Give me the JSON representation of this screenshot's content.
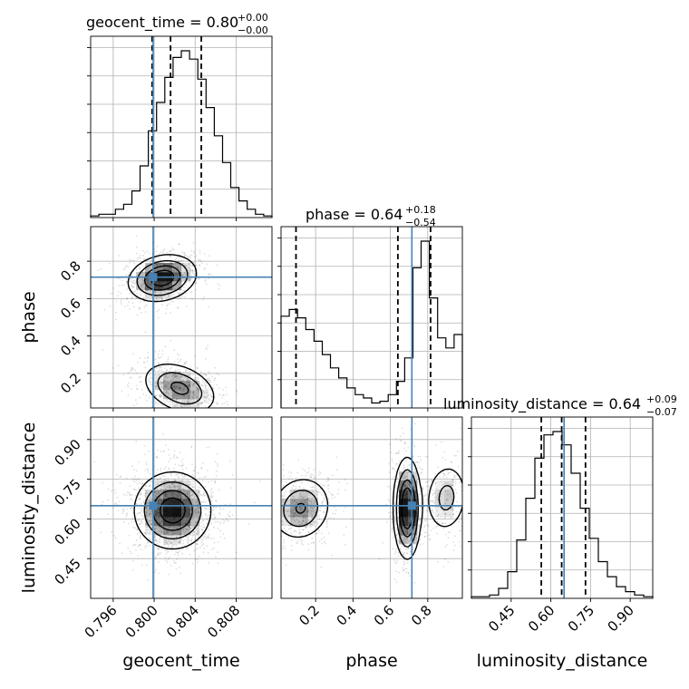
{
  "chart_data": {
    "type": "corner",
    "parameters": [
      "geocent_time",
      "phase",
      "luminosity_distance"
    ],
    "truths": {
      "geocent_time": 0.7999,
      "phase": 0.715,
      "luminosity_distance": 0.65
    },
    "truth_color": "#4682b4",
    "axes": {
      "geocent_time": {
        "range": [
          0.7938,
          0.8115
        ],
        "ticks": [
          0.796,
          0.8,
          0.804,
          0.808
        ],
        "tick_labels": [
          "0.796",
          "0.800",
          "0.804",
          "0.808"
        ]
      },
      "phase": {
        "range": [
          0.015,
          0.985
        ],
        "ticks": [
          0.2,
          0.4,
          0.6,
          0.8
        ],
        "tick_labels": [
          "0.2",
          "0.4",
          "0.6",
          "0.8"
        ]
      },
      "luminosity_distance": {
        "range": [
          0.3,
          0.985
        ],
        "ticks": [
          0.45,
          0.6,
          0.75,
          0.9
        ],
        "tick_labels": [
          "0.45",
          "0.60",
          "0.75",
          "0.90"
        ]
      }
    },
    "titles": [
      {
        "param": "geocent_time",
        "main": "geocent_time = 0.80",
        "sup": "+0.00",
        "sub": "−0.00"
      },
      {
        "param": "phase",
        "main": "phase = 0.64",
        "sup": "+0.18",
        "sub": "−0.54"
      },
      {
        "param": "luminosity_distance",
        "main": "luminosity_distance = 0.64",
        "sup": "+0.09",
        "sub": "−0.07"
      }
    ],
    "quantiles": {
      "geocent_time": [
        0.7998,
        0.8016,
        0.8046
      ],
      "phase": [
        0.095,
        0.64,
        0.815
      ],
      "luminosity_distance": [
        0.564,
        0.641,
        0.731
      ]
    },
    "histograms": {
      "geocent_time": [
        1,
        2,
        2,
        5,
        8,
        16,
        31,
        52,
        69,
        84,
        96,
        100,
        95,
        83,
        66,
        49,
        33,
        18,
        10,
        5,
        2,
        1
      ],
      "phase": [
        55,
        59,
        54,
        47,
        40,
        32,
        24,
        18,
        12,
        8,
        6,
        3,
        4,
        8,
        16,
        30,
        84,
        100,
        66,
        42,
        36,
        44
      ],
      "luminosity_distance": [
        1,
        1,
        2,
        6,
        16,
        35,
        60,
        84,
        98,
        100,
        92,
        75,
        54,
        36,
        22,
        13,
        7,
        4,
        2,
        1
      ]
    },
    "grid": true
  }
}
